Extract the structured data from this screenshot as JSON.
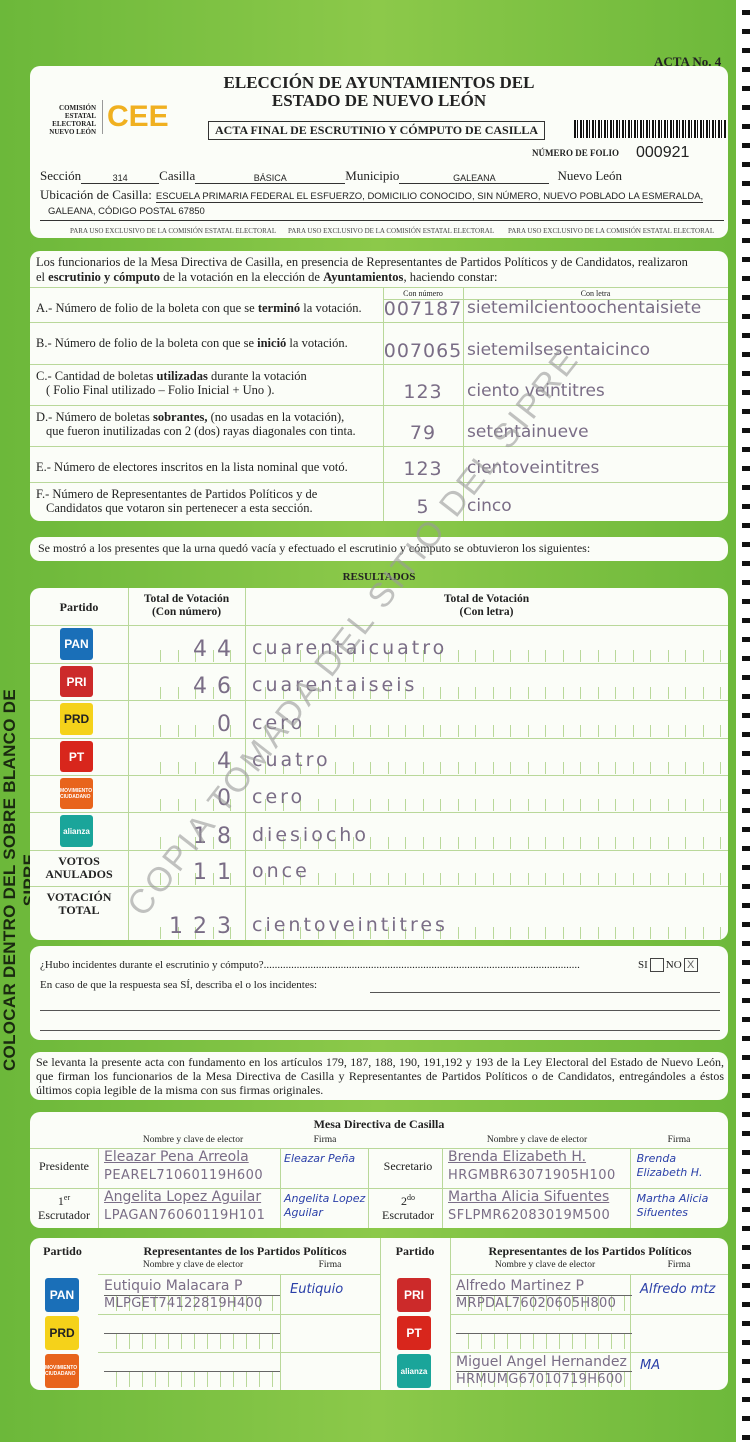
{
  "side_text": "COLOCAR DENTRO DEL SOBRE BLANCO DE SIPRE",
  "watermark": "COPIA TOMADA DEL SITIO DEL SIPRE",
  "header": {
    "acta_no": "ACTA No. 4",
    "title_line1": "ELECCIÓN DE AYUNTAMIENTOS DEL",
    "title_line2": "ESTADO DE NUEVO LEÓN",
    "org_name": "COMISIÓN ESTATAL ELECTORAL NUEVO LEÓN",
    "logo_text": "CEE",
    "subtitle": "ACTA FINAL DE ESCRUTINIO Y CÓMPUTO DE CASILLA",
    "folio_label": "NÚMERO DE FOLIO",
    "folio": "000921",
    "seccion_label": "Sección",
    "seccion": "314",
    "casilla_label": "Casilla",
    "casilla": "BÁSICA",
    "municipio_label": "Municipio",
    "municipio": "GALEANA",
    "estado": "Nuevo León",
    "ubicacion_label": "Ubicación de Casilla:",
    "ubicacion_line1": "ESCUELA PRIMARIA FEDERAL EL ESFUERZO, DOMICILIO CONOCIDO, SIN NÚMERO, NUEVO POBLADO LA ESMERALDA,",
    "ubicacion_line2": "GALEANA, CÓDIGO POSTAL 67850",
    "exclusive_note": "PARA USO EXCLUSIVO DE LA COMISIÓN ESTATAL ELECTORAL"
  },
  "constancia": {
    "intro_1": "Los funcionarios de la Mesa Directiva de Casilla, en presencia de Representantes de Partidos Políticos  y de Candidatos, realizaron",
    "intro_2a": "el ",
    "intro_2b": "escrutinio y cómputo",
    "intro_2c": " de la votación en la elección de ",
    "intro_2d": "Ayuntamientos",
    "intro_2e": ", haciendo constar:",
    "col_numero": "Con número",
    "col_letra": "Con letra",
    "rows": [
      {
        "pre": "A.- Número de folio de la boleta con que se ",
        "bold": "terminó",
        "post": " la votación.",
        "line2": "",
        "numero": "007187",
        "letra": "sietemilcientoochentaisiete"
      },
      {
        "pre": "B.- Número de folio de la boleta con que se ",
        "bold": "inició",
        "post": " la votación.",
        "line2": "",
        "numero": "007065",
        "letra": "sietemilsesentaicinco"
      },
      {
        "pre": "C.- Cantidad de boletas ",
        "bold": "utilizadas",
        "post": " durante la votación",
        "line2": "( Folio Final utilizado – Folio Inicial + Uno ).",
        "numero": "123",
        "letra": "ciento veintitres"
      },
      {
        "pre": "D.- Número de boletas ",
        "bold": "sobrantes,",
        "post": " (no usadas en la votación),",
        "line2": "que fueron inutilizadas con 2 (dos) rayas diagonales con tinta.",
        "numero": "79",
        "letra": "setentainueve"
      },
      {
        "pre": "E.- Número de electores inscritos en la lista nominal que votó.",
        "bold": "",
        "post": "",
        "line2": "",
        "numero": "123",
        "letra": "cientoveintitres"
      },
      {
        "pre": "F.- Número de Representantes de Partidos Políticos y de",
        "bold": "",
        "post": "",
        "line2": "Candidatos que votaron sin pertenecer a esta sección.",
        "numero": "5",
        "letra": "cinco"
      }
    ]
  },
  "statement": "Se mostró a los presentes que la urna quedó vacía y efectuado el escrutinio y cómputo se obtuvieron los siguientes:",
  "resultados": {
    "title": "RESULTADOS",
    "col_partido": "Partido",
    "col_numero_1": "Total de Votación",
    "col_numero_2": "(Con número)",
    "col_letra_1": "Total de Votación",
    "col_letra_2": "(Con letra)",
    "rows": [
      {
        "party": "PAN",
        "logo": "pan-logo",
        "color": "#1a6fb8",
        "numero": "44",
        "letra": "cuarentaicuatro"
      },
      {
        "party": "PRI",
        "logo": "pri-compromiso-logo",
        "color": "#cc2a2a",
        "numero": "46",
        "letra": "cuarentaiseis"
      },
      {
        "party": "PRD",
        "logo": "prd-logo",
        "color": "#f5d21a",
        "numero": "0",
        "letra": "cero"
      },
      {
        "party": "PT",
        "logo": "pt-logo",
        "color": "#d8261c",
        "numero": "4",
        "letra": "cuatro"
      },
      {
        "party": "MOVIMIENTO CIUDADANO",
        "logo": "movimiento-ciudadano-logo",
        "color": "#e8641c",
        "numero": "0",
        "letra": "cero"
      },
      {
        "party": "alianza",
        "logo": "nueva-alianza-logo",
        "color": "#1aa59a",
        "numero": "18",
        "letra": "diesiocho"
      },
      {
        "party": "VOTOS ANULADOS",
        "logo": "",
        "color": "",
        "numero": "11",
        "letra": "once"
      },
      {
        "party": "VOTACIÓN TOTAL",
        "logo": "",
        "color": "",
        "numero": "123",
        "letra": "cientoveintitres"
      }
    ]
  },
  "incidentes": {
    "question": "¿Hubo incidentes durante el escrutinio y cómputo?",
    "si_label": "SI",
    "no_label": "NO",
    "si_checked": false,
    "no_checked": true,
    "describe": "En caso de que la respuesta sea SÍ, describa el o los incidentes:"
  },
  "legal": "Se levanta la presente acta con fundamento en los artículos 179, 187, 188, 190, 191,192 y 193 de la Ley Electoral del Estado de Nuevo León, que firman los funcionarios de la Mesa Directiva de Casilla y Representantes de  Partidos Políticos o de Candidatos, entregándoles a éstos últimos copia legible de la misma con sus firmas originales.",
  "mesa": {
    "title": "Mesa Directiva de Casilla",
    "col_nombre": "Nombre y clave de elector",
    "col_firma": "Firma",
    "presidente": {
      "role": "Presidente",
      "nombre": "Eleazar Pena Arreola",
      "clave": "PEAREL71060119H600",
      "firma": "Eleazar Peña"
    },
    "secretario": {
      "role": "Secretario",
      "nombre": "Brenda Elizabeth H.",
      "clave": "HRGMBR63071905H100",
      "firma": "Brenda Elizabeth H."
    },
    "escrutador1": {
      "role_sup": "er",
      "role_num": "1",
      "role": "Escrutador",
      "nombre": "Angelita Lopez Aguilar",
      "clave": "LPAGAN76060119H101",
      "firma": "Angelita Lopez Aguilar"
    },
    "escrutador2": {
      "role_sup": "do",
      "role_num": "2",
      "role": "Escrutador",
      "nombre": "Martha Alicia Sifuentes",
      "clave": "SFLPMR62083019M500",
      "firma": "Martha Alicia Sifuentes"
    }
  },
  "representantes": {
    "col_partido": "Partido",
    "col_title_left": "Representantes de los Partidos Políticos",
    "col_title_right": "Representantes de los Partidos Políticos",
    "col_nombre": "Nombre y clave de elector",
    "col_firma": "Firma",
    "left": [
      {
        "party": "PAN",
        "color": "#1a6fb8",
        "nombre": "Eutiquio Malacara P",
        "clave": "MLPGET74122819H400",
        "firma": "Eutiquio"
      },
      {
        "party": "PRD",
        "color": "#f5d21a",
        "nombre": "",
        "clave": "",
        "firma": ""
      },
      {
        "party": "MOVIMIENTO CIUDADANO",
        "color": "#e8641c",
        "nombre": "",
        "clave": "",
        "firma": ""
      }
    ],
    "right": [
      {
        "party": "PRI",
        "color": "#cc2a2a",
        "nombre": "Alfredo Martinez P",
        "clave": "MRPDAL76020605H800",
        "firma": "Alfredo mtz"
      },
      {
        "party": "PT",
        "color": "#d8261c",
        "nombre": "",
        "clave": "",
        "firma": ""
      },
      {
        "party": "alianza",
        "color": "#1aa59a",
        "nombre": "Miguel Angel Hernandez",
        "clave": "HRMUMG67010719H600",
        "firma": "MA"
      }
    ]
  }
}
